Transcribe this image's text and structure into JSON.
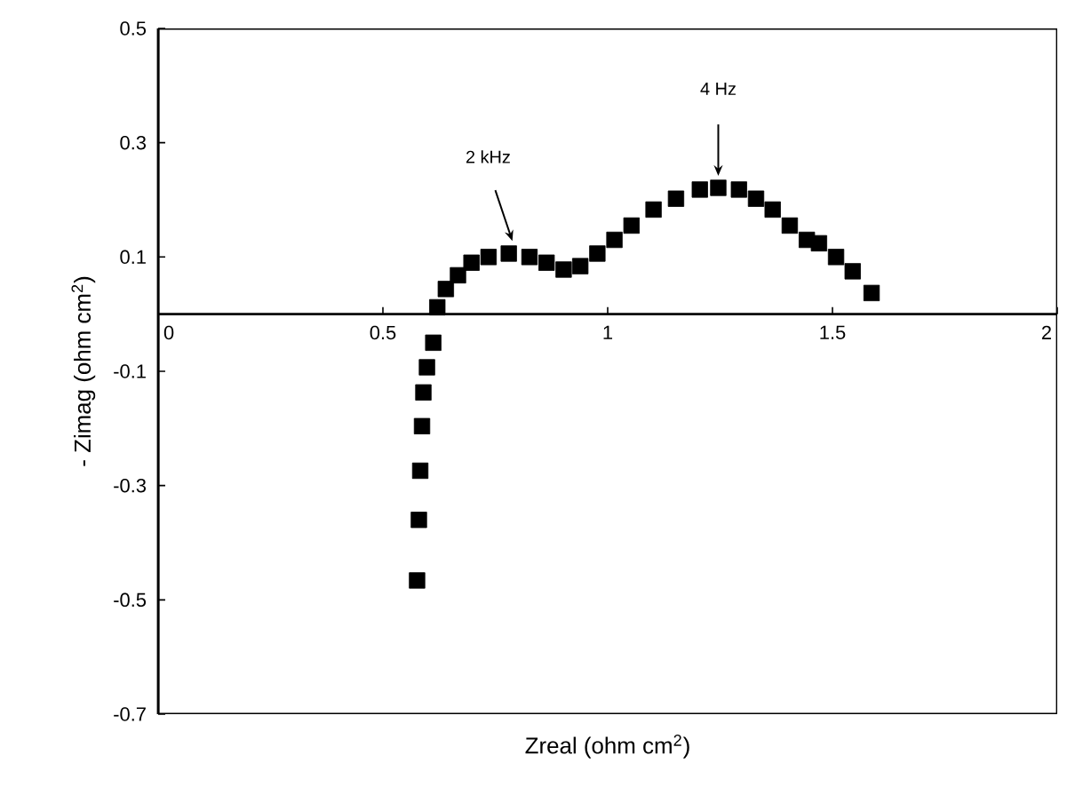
{
  "chart_data": {
    "type": "scatter",
    "xlabel": "Zreal (ohm cm$^{2}$)",
    "ylabel": "- Zimag (ohm cm$^{2}$)",
    "xlim": [
      0,
      2
    ],
    "ylim": [
      -0.7,
      0.5
    ],
    "xticks": [
      0,
      0.5,
      1,
      1.5,
      2
    ],
    "yticks": [
      -0.7,
      -0.5,
      -0.3,
      -0.1,
      0.1,
      0.3,
      0.5
    ],
    "marker": "square",
    "series": [
      {
        "color": "#000000",
        "x": [
          0.576,
          0.58,
          0.583,
          0.587,
          0.59,
          0.598,
          0.612,
          0.621,
          0.64,
          0.667,
          0.697,
          0.735,
          0.78,
          0.826,
          0.864,
          0.902,
          0.939,
          0.977,
          1.015,
          1.053,
          1.102,
          1.152,
          1.205,
          1.246,
          1.292,
          1.33,
          1.367,
          1.405,
          1.443,
          1.47,
          1.508,
          1.545,
          1.587
        ],
        "values": [
          -0.466,
          -0.36,
          -0.274,
          -0.196,
          -0.137,
          -0.093,
          -0.05,
          0.012,
          0.044,
          0.068,
          0.09,
          0.1,
          0.106,
          0.1,
          0.09,
          0.078,
          0.084,
          0.106,
          0.13,
          0.155,
          0.183,
          0.202,
          0.218,
          0.221,
          0.218,
          0.202,
          0.183,
          0.155,
          0.13,
          0.124,
          0.1,
          0.075,
          0.037
        ]
      }
    ],
    "annotations": [
      "2 kHz",
      "4 Hz"
    ]
  }
}
